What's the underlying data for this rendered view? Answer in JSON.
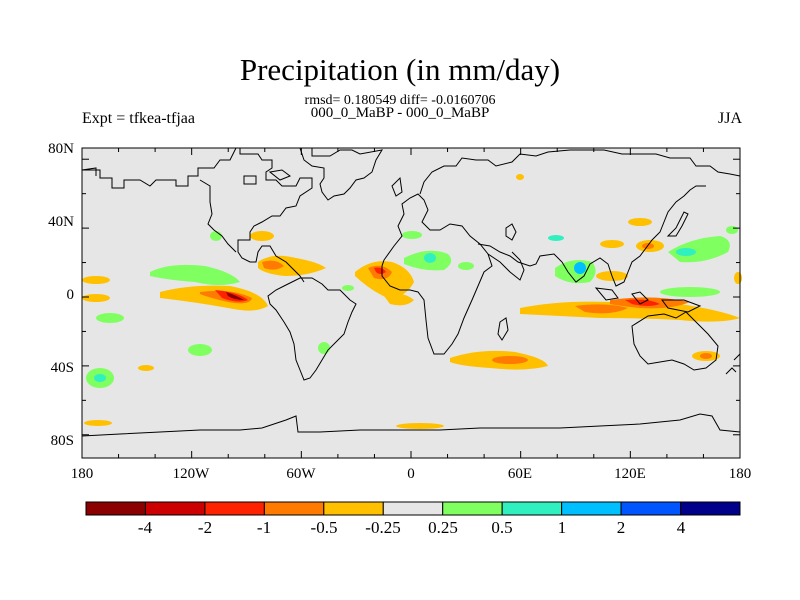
{
  "title": "Precipitation (in mm/day)",
  "stats": "rmsd= 0.180549 diff= -0.0160706",
  "subtitle": "000_0_MaBP - 000_0_MaBP",
  "left_label": "Expt = tfkea-tfjaa",
  "right_label": "JJA",
  "lat_labels": [
    "80N",
    "40N",
    "0",
    "40S",
    "80S"
  ],
  "lon_labels": [
    "180",
    "120W",
    "60W",
    "0",
    "60E",
    "120E",
    "180"
  ],
  "colorbar": {
    "colors": [
      "#8b0000",
      "#cc0000",
      "#ff2200",
      "#ff7a00",
      "#ffc000",
      "#e6e6e6",
      "#80ff60",
      "#30f0c0",
      "#00bfff",
      "#0055ff",
      "#00008b"
    ],
    "labels": [
      "-4",
      "-2",
      "-1",
      "-0.5",
      "-0.25",
      "0.25",
      "0.5",
      "1",
      "2",
      "4"
    ]
  },
  "colors": {
    "background": "#e6e6e6",
    "coast": "#000000"
  }
}
